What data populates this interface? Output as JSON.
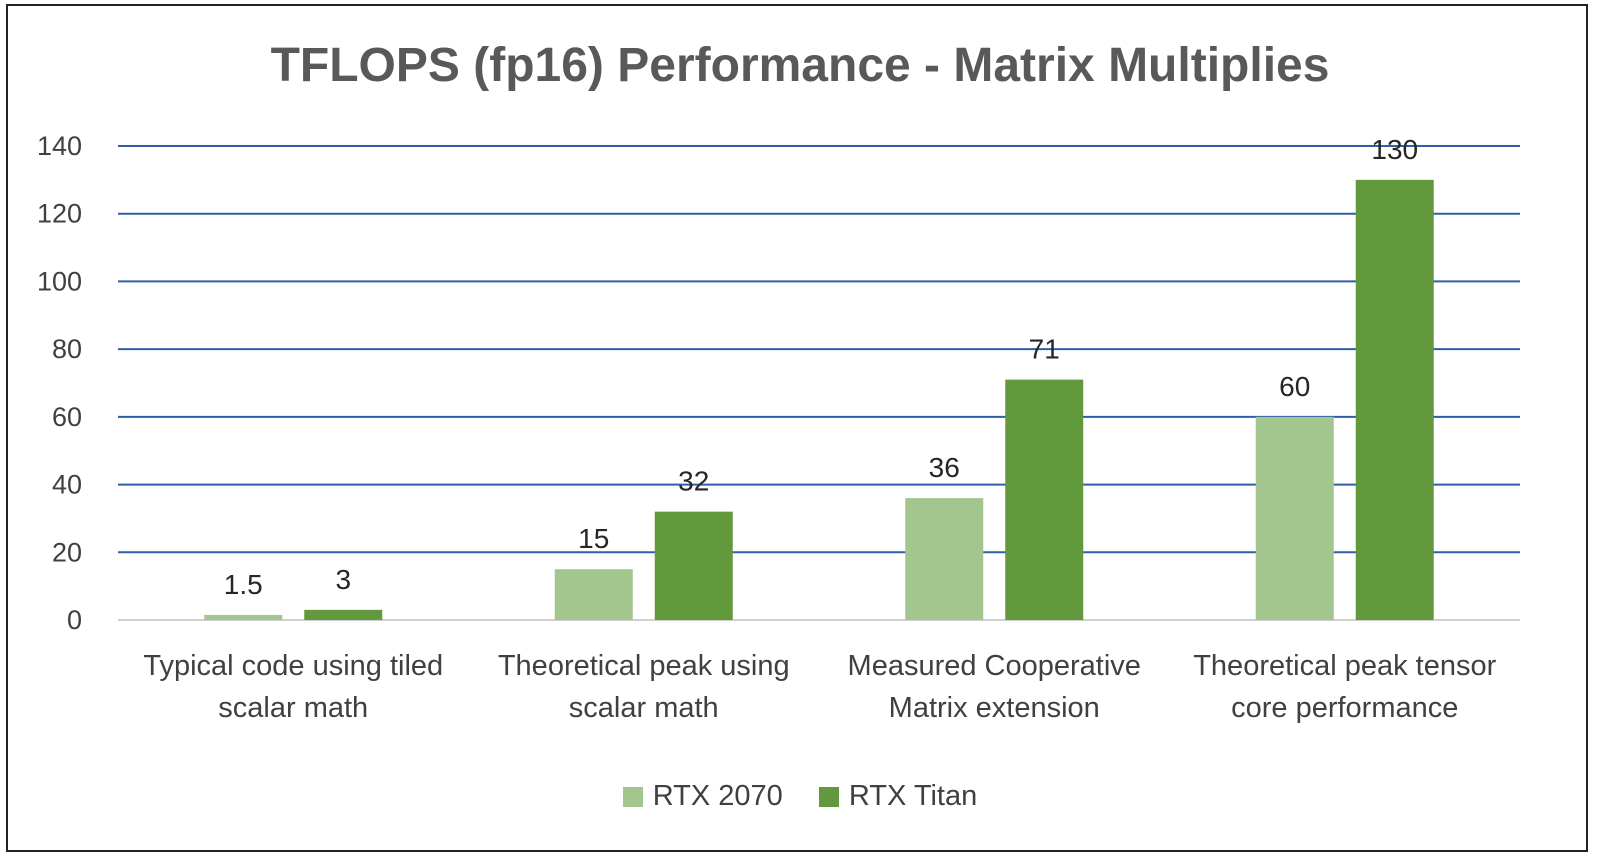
{
  "chart_data": {
    "type": "bar",
    "title": "TFLOPS (fp16) Performance - Matrix Multiplies",
    "categories": [
      [
        "Typical code using tiled",
        "scalar math"
      ],
      [
        "Theoretical peak using",
        "scalar math"
      ],
      [
        "Measured Cooperative",
        "Matrix extension"
      ],
      [
        "Theoretical peak tensor",
        "core performance"
      ]
    ],
    "series": [
      {
        "name": "RTX 2070",
        "values": [
          1.5,
          15,
          36,
          60
        ],
        "labels": [
          "1.5",
          "15",
          "36",
          "60"
        ],
        "color": "#a3c68e"
      },
      {
        "name": "RTX Titan",
        "values": [
          3,
          32,
          71,
          130
        ],
        "labels": [
          "3",
          "32",
          "71",
          "130"
        ],
        "color": "#62993c"
      }
    ],
    "ylim": [
      0,
      140
    ],
    "yticks": [
      0,
      20,
      40,
      60,
      80,
      100,
      120,
      140
    ],
    "gridline_color": "#2e5fa8",
    "grid": true,
    "legend_position": "bottom"
  }
}
